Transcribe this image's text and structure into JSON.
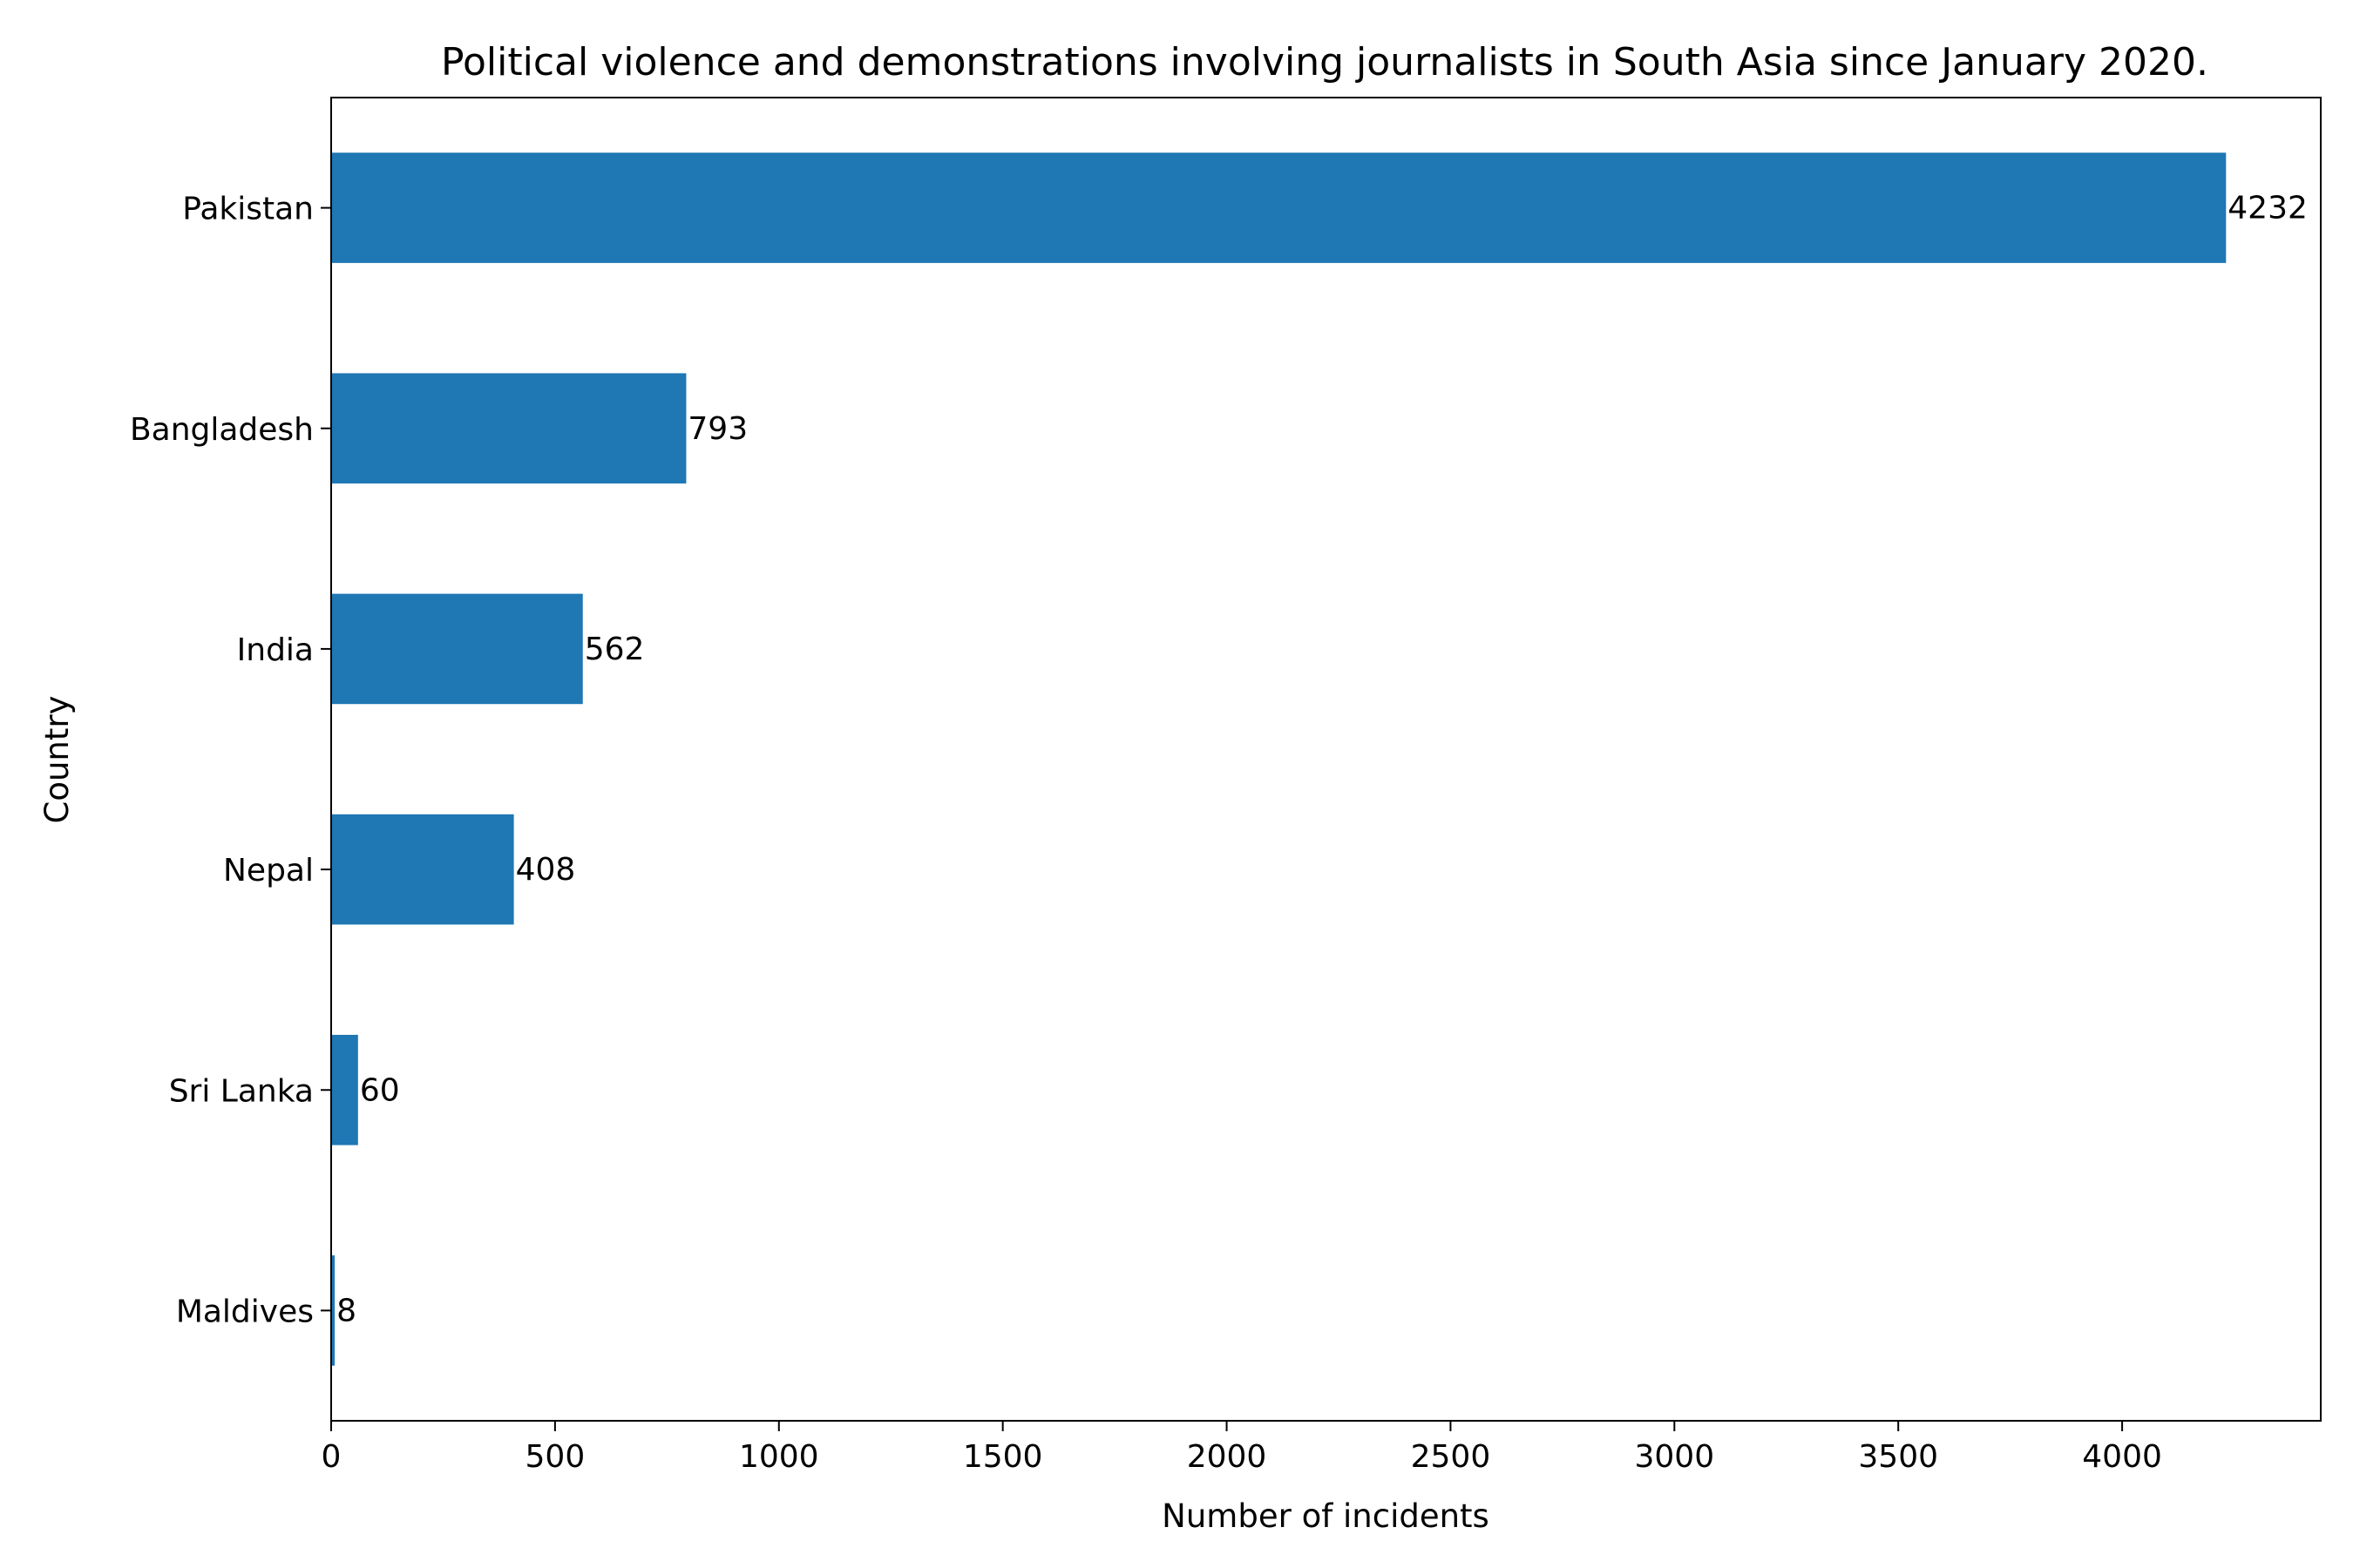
{
  "chart_data": {
    "type": "bar",
    "orientation": "horizontal",
    "title": "Political violence and demonstrations involving journalists in South Asia since January 2020.",
    "xlabel": "Number of incidents",
    "ylabel": "Country",
    "categories": [
      "Pakistan",
      "Bangladesh",
      "India",
      "Nepal",
      "Sri Lanka",
      "Maldives"
    ],
    "values": [
      4232,
      793,
      562,
      408,
      60,
      8
    ],
    "data_labels": [
      "4232",
      "793",
      "562",
      "408",
      "60",
      "8"
    ],
    "xlim": [
      0,
      4443.6
    ],
    "xticks": [
      0,
      500,
      1000,
      1500,
      2000,
      2500,
      3000,
      3500,
      4000
    ],
    "xtick_labels": [
      "0",
      "500",
      "1000",
      "1500",
      "2000",
      "2500",
      "3000",
      "3500",
      "4000"
    ],
    "grid": false,
    "legend": "none",
    "colors": {
      "bar": "#1f77b4",
      "axes": "#000000",
      "background": "#ffffff"
    }
  }
}
